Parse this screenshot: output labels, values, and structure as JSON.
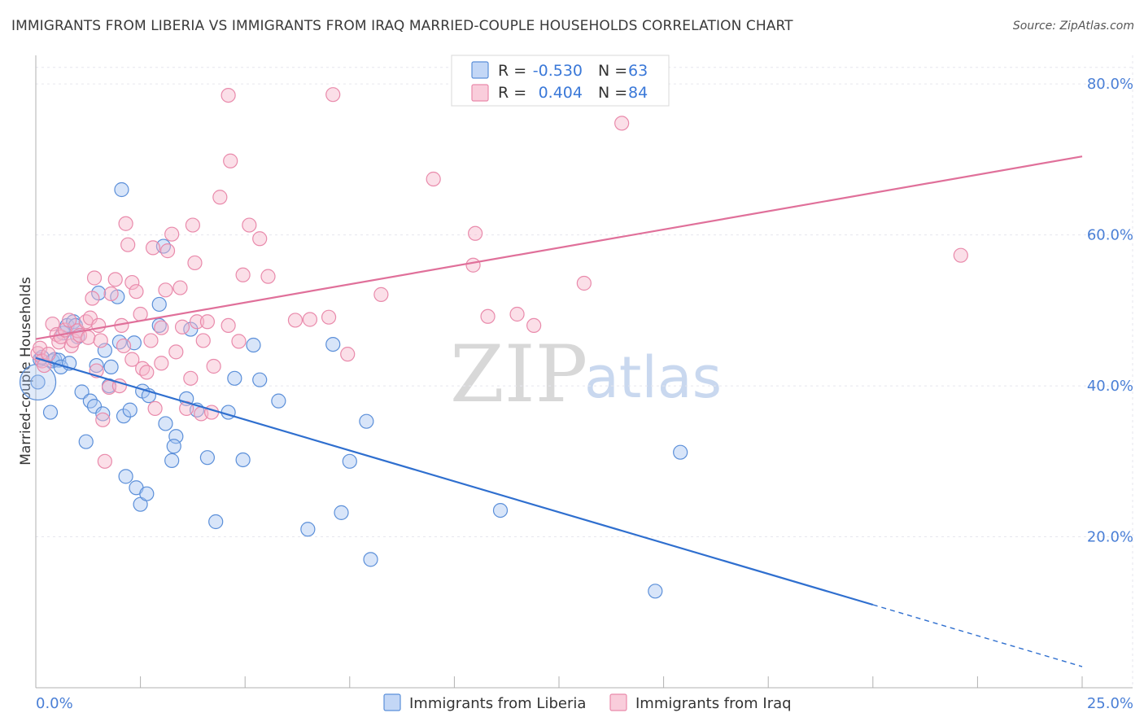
{
  "title": "IMMIGRANTS FROM LIBERIA VS IMMIGRANTS FROM IRAQ MARRIED-COUPLE HOUSEHOLDS CORRELATION CHART",
  "source": "Source: ZipAtlas.com",
  "watermark": {
    "zip": "ZIP",
    "atlas": "atlas"
  },
  "colors": {
    "liberia_fill": "#a9c6f2",
    "liberia_stroke": "#5b8fd9",
    "liberia_line": "#2f6fcf",
    "iraq_fill": "#f6b8cc",
    "iraq_stroke": "#e98aab",
    "iraq_line": "#e0709a",
    "accent_text": "#3a78d8"
  },
  "legend": {
    "rows": [
      {
        "r_label": "R =",
        "r_value": "-0.530",
        "n_label": "N =",
        "n_value": "63"
      },
      {
        "r_label": "R =",
        "r_value": "0.404",
        "n_label": "N =",
        "n_value": "84"
      }
    ]
  },
  "chart_data": {
    "type": "scatter",
    "title": "IMMIGRANTS FROM LIBERIA VS IMMIGRANTS FROM IRAQ MARRIED-COUPLE HOUSEHOLDS CORRELATION CHART",
    "xlabel": "",
    "ylabel": "Married-couple Households",
    "xlim": [
      0,
      25
    ],
    "ylim": [
      0,
      84
    ],
    "x_tick_labels": [
      "0.0%",
      "25.0%"
    ],
    "y_ticks": [
      20,
      40,
      60,
      80
    ],
    "y_tick_labels": [
      "20.0%",
      "40.0%",
      "60.0%",
      "80.0%"
    ],
    "grid": true,
    "legend_position": "top-center",
    "series": [
      {
        "name": "Immigrants from Liberia",
        "r": -0.53,
        "n": 63,
        "trend": {
          "x0": 0,
          "y0": 43.7,
          "x1": 20,
          "y1": 11.0,
          "dashed_to_x": 25,
          "dashed_to_y": 2.8
        },
        "points": [
          [
            0.05,
            40.5
          ],
          [
            0.1,
            43.5
          ],
          [
            0.15,
            43.8
          ],
          [
            0.35,
            36.5
          ],
          [
            0.4,
            43.3
          ],
          [
            0.45,
            43.5
          ],
          [
            0.55,
            43.4
          ],
          [
            0.6,
            42.5
          ],
          [
            0.65,
            47
          ],
          [
            0.75,
            48
          ],
          [
            0.8,
            43
          ],
          [
            0.9,
            48.5
          ],
          [
            0.95,
            48
          ],
          [
            1.0,
            46.5
          ],
          [
            1.1,
            39.2
          ],
          [
            1.2,
            32.6
          ],
          [
            1.3,
            38
          ],
          [
            1.4,
            37.3
          ],
          [
            1.45,
            42.7
          ],
          [
            1.5,
            52.3
          ],
          [
            1.6,
            36.3
          ],
          [
            1.65,
            44.7
          ],
          [
            1.75,
            40
          ],
          [
            1.8,
            42.5
          ],
          [
            1.95,
            51.8
          ],
          [
            2.0,
            45.8
          ],
          [
            2.05,
            66
          ],
          [
            2.1,
            36
          ],
          [
            2.15,
            28
          ],
          [
            2.25,
            36.8
          ],
          [
            2.35,
            45.7
          ],
          [
            2.4,
            26.5
          ],
          [
            2.5,
            24.3
          ],
          [
            2.55,
            39.3
          ],
          [
            2.65,
            25.7
          ],
          [
            2.7,
            38.7
          ],
          [
            2.95,
            50.8
          ],
          [
            2.95,
            48
          ],
          [
            3.05,
            58.5
          ],
          [
            3.1,
            35
          ],
          [
            3.25,
            30.1
          ],
          [
            3.35,
            33.3
          ],
          [
            3.3,
            32
          ],
          [
            3.6,
            38.3
          ],
          [
            3.7,
            47.5
          ],
          [
            3.85,
            36.8
          ],
          [
            4.1,
            30.5
          ],
          [
            4.3,
            22
          ],
          [
            4.6,
            36.5
          ],
          [
            4.75,
            41
          ],
          [
            4.95,
            30.2
          ],
          [
            5.2,
            45.4
          ],
          [
            5.35,
            40.8
          ],
          [
            5.8,
            38
          ],
          [
            6.5,
            21
          ],
          [
            7.1,
            45.5
          ],
          [
            7.3,
            23.2
          ],
          [
            7.5,
            30
          ],
          [
            8.0,
            17
          ],
          [
            7.9,
            35.3
          ],
          [
            11.1,
            23.5
          ],
          [
            14.8,
            12.8
          ],
          [
            15.4,
            31.2
          ]
        ]
      },
      {
        "name": "Immigrants from Iraq",
        "r": 0.404,
        "n": 84,
        "trend": {
          "x0": 0,
          "y0": 46.2,
          "x1": 25,
          "y1": 70.4
        },
        "points": [
          [
            0.05,
            44.3
          ],
          [
            0.1,
            45
          ],
          [
            0.15,
            43.3
          ],
          [
            0.2,
            42.7
          ],
          [
            0.3,
            44.2
          ],
          [
            0.4,
            48.2
          ],
          [
            0.5,
            46.8
          ],
          [
            0.55,
            45.8
          ],
          [
            0.6,
            46.5
          ],
          [
            0.7,
            47.4
          ],
          [
            0.8,
            48.7
          ],
          [
            0.85,
            45.3
          ],
          [
            0.9,
            46
          ],
          [
            1.0,
            47.3
          ],
          [
            1.05,
            46.7
          ],
          [
            1.2,
            48.5
          ],
          [
            1.25,
            46.4
          ],
          [
            1.3,
            49
          ],
          [
            1.35,
            51.6
          ],
          [
            1.4,
            54.3
          ],
          [
            1.5,
            48
          ],
          [
            1.55,
            46
          ],
          [
            1.6,
            35.5
          ],
          [
            1.65,
            30
          ],
          [
            1.75,
            39.8
          ],
          [
            1.8,
            52.2
          ],
          [
            1.9,
            54.1
          ],
          [
            2.0,
            40
          ],
          [
            2.05,
            48
          ],
          [
            2.1,
            45.3
          ],
          [
            2.15,
            61.5
          ],
          [
            2.2,
            58.7
          ],
          [
            2.3,
            53.7
          ],
          [
            2.4,
            52.5
          ],
          [
            2.5,
            49.5
          ],
          [
            2.55,
            42.3
          ],
          [
            2.65,
            41.8
          ],
          [
            2.75,
            46
          ],
          [
            2.8,
            58.3
          ],
          [
            2.85,
            37
          ],
          [
            3.0,
            47.7
          ],
          [
            3.1,
            52.7
          ],
          [
            3.15,
            57.9
          ],
          [
            3.25,
            60.1
          ],
          [
            3.35,
            44.5
          ],
          [
            3.45,
            53
          ],
          [
            3.5,
            47.8
          ],
          [
            3.6,
            37
          ],
          [
            3.7,
            41
          ],
          [
            3.75,
            61.3
          ],
          [
            3.8,
            56.3
          ],
          [
            3.85,
            48.5
          ],
          [
            3.95,
            36.3
          ],
          [
            4.0,
            46
          ],
          [
            4.1,
            48.5
          ],
          [
            4.25,
            42.6
          ],
          [
            4.4,
            65
          ],
          [
            4.6,
            48
          ],
          [
            4.6,
            78.5
          ],
          [
            4.65,
            69.8
          ],
          [
            4.85,
            45.9
          ],
          [
            4.95,
            54.7
          ],
          [
            5.1,
            61.3
          ],
          [
            5.35,
            59.5
          ],
          [
            5.55,
            54.5
          ],
          [
            6.55,
            48.8
          ],
          [
            7.0,
            49.1
          ],
          [
            7.1,
            78.6
          ],
          [
            7.45,
            44.2
          ],
          [
            8.25,
            52.1
          ],
          [
            9.5,
            67.4
          ],
          [
            10.5,
            60.2
          ],
          [
            10.45,
            56
          ],
          [
            10.8,
            49.2
          ],
          [
            11.5,
            49.5
          ],
          [
            11.9,
            48
          ],
          [
            13.1,
            53.6
          ],
          [
            14.0,
            74.8
          ],
          [
            22.1,
            57.3
          ],
          [
            3.0,
            43
          ],
          [
            4.2,
            36.5
          ],
          [
            2.3,
            43.5
          ],
          [
            6.2,
            48.7
          ],
          [
            1.45,
            42
          ]
        ]
      }
    ]
  },
  "bottom_legend": [
    {
      "label": "Immigrants from Liberia"
    },
    {
      "label": "Immigrants from Iraq"
    }
  ]
}
